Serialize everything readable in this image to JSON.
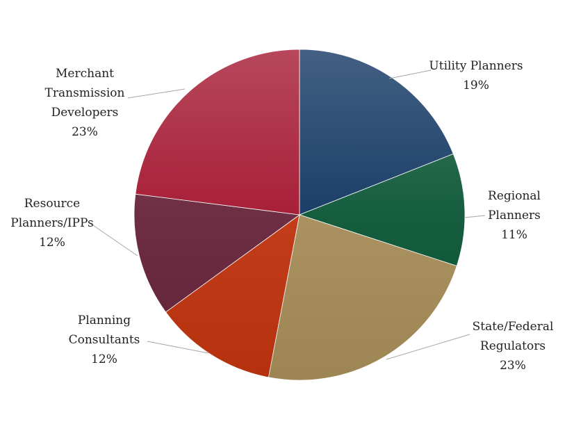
{
  "chart_data": {
    "type": "pie",
    "title": "",
    "slices": [
      {
        "label": "Utility Planners",
        "value": 19,
        "value_label": "19%",
        "color": "#0f3460"
      },
      {
        "label": "Regional Planners",
        "value": 11,
        "value_label": "11%",
        "color": "#0a5535"
      },
      {
        "label": "State/Federal Regulators",
        "value": 23,
        "value_label": "23%",
        "color": "#a68c58"
      },
      {
        "label": "Planning Consultants",
        "value": 12,
        "value_label": "12%",
        "color": "#bf330e"
      },
      {
        "label": "Resource Planners/IPPs",
        "value": 12,
        "value_label": "12%",
        "color": "#66233a"
      },
      {
        "label": "Merchant Transmission Developers",
        "value": 23,
        "value_label": "23%",
        "color": "#a3142d"
      }
    ],
    "label_lines": [
      [
        "Utility Planners"
      ],
      [
        "Regional",
        "Planners"
      ],
      [
        "State/Federal",
        "Regulators"
      ],
      [
        "Planning",
        "Consultants"
      ],
      [
        "Resource",
        "Planners/IPPs"
      ],
      [
        "Merchant",
        "Transmission",
        "Developers"
      ]
    ]
  }
}
